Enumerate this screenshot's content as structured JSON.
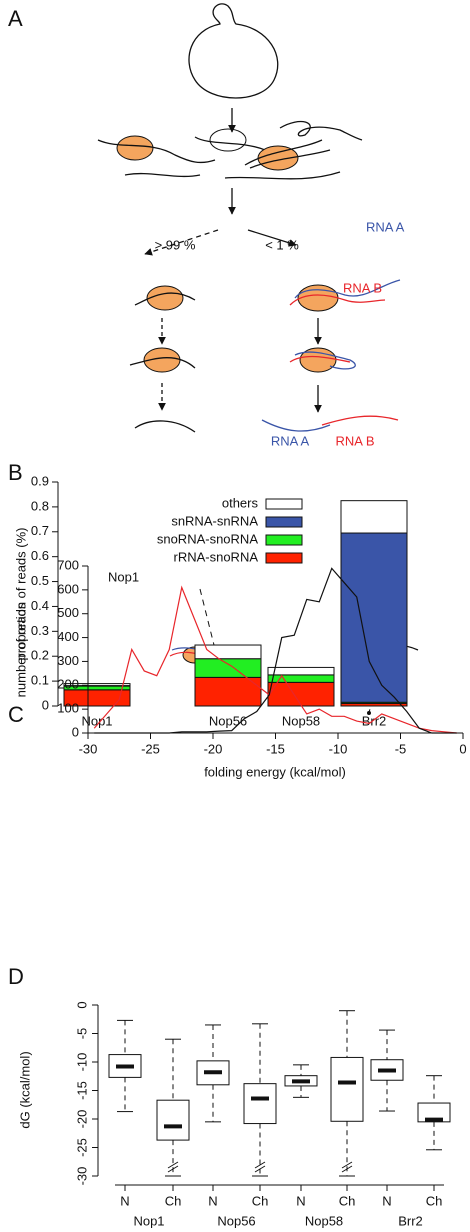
{
  "panels": [
    "A",
    "B",
    "C",
    "D"
  ],
  "diagram": {
    "left_fraction": "> 99 %",
    "right_fraction": "< 1 %",
    "rna_a": "RNA A",
    "rna_b": "RNA B",
    "product_a": "RNA A",
    "product_b": "RNA B"
  },
  "chart_data": [
    {
      "type": "bar",
      "stacked": true,
      "ylabel": "proportion of reads (%)",
      "categories": [
        "Nop1",
        "Nop56",
        "Nop58",
        "Brr2"
      ],
      "series": [
        {
          "name": "rRNA-snoRNA",
          "color": "#ff2200",
          "values": [
            0.065,
            0.115,
            0.095,
            0.01
          ]
        },
        {
          "name": "snoRNA-snoRNA",
          "color": "#22ee22",
          "values": [
            0.015,
            0.075,
            0.03,
            0.005
          ]
        },
        {
          "name": "snRNA-snRNA",
          "color": "#3a55a8",
          "values": [
            0.002,
            0,
            0,
            0.68
          ]
        },
        {
          "name": "others",
          "color": "#ffffff",
          "values": [
            0.008,
            0.055,
            0.03,
            0.13
          ]
        }
      ],
      "ylim": [
        0,
        0.9
      ],
      "yticks": [
        0,
        0.1,
        0.2,
        0.3,
        0.4,
        0.5,
        0.6,
        0.7,
        0.8,
        0.9
      ],
      "legend": "upper left"
    },
    {
      "type": "line",
      "annotation": "Nop1",
      "xlabel": "folding energy (kcal/mol)",
      "ylabel": "number of reads",
      "x": [
        -29.5,
        -28.5,
        -27.5,
        -26.5,
        -25.5,
        -24.5,
        -23.5,
        -22.5,
        -21.5,
        -20.5,
        -19.5,
        -18.5,
        -17.5,
        -16.5,
        -15.5,
        -14.5,
        -13.5,
        -12.5,
        -11.5,
        -10.5,
        -9.5,
        -8.5,
        -7.5,
        -6.5,
        -5.5,
        -4.5,
        -3.5,
        -2.5,
        -1.5,
        -0.5
      ],
      "series": [
        {
          "color": "#e8262b",
          "values": [
            20,
            80,
            140,
            350,
            260,
            240,
            350,
            610,
            480,
            350,
            310,
            280,
            240,
            200,
            160,
            240,
            160,
            80,
            100,
            70,
            70,
            50,
            40,
            80,
            60,
            40,
            20,
            10,
            5,
            0
          ]
        },
        {
          "color": "#111111",
          "values": [
            0,
            0,
            0,
            0,
            0,
            0,
            0,
            5,
            5,
            5,
            8,
            10,
            60,
            90,
            160,
            400,
            410,
            560,
            550,
            690,
            630,
            570,
            300,
            200,
            150,
            90,
            20,
            0,
            0,
            0
          ]
        }
      ],
      "xlim": [
        -30,
        0
      ],
      "xticks": [
        -30,
        -25,
        -20,
        -15,
        -10,
        -5,
        0
      ],
      "ylim": [
        0,
        700
      ],
      "yticks": [
        0,
        100,
        200,
        300,
        400,
        500,
        600,
        700
      ]
    },
    {
      "type": "box",
      "ylabel": "dG (kcal/mol)",
      "categories": [
        "N",
        "Ch",
        "N",
        "Ch",
        "N",
        "Ch",
        "N",
        "Ch"
      ],
      "groups": [
        "Nop1",
        "Nop56",
        "Nop58",
        "Brr2"
      ],
      "high": [
        -2.7,
        -6,
        -3.5,
        -3.3,
        -10.5,
        -1,
        -4.4,
        -12.4
      ],
      "q3": [
        -8.7,
        -16.7,
        -9.8,
        -13.8,
        -12.4,
        -9.2,
        -9.6,
        -17.2
      ],
      "median": [
        -10.8,
        -21.3,
        -11.8,
        -16.4,
        -13.4,
        -13.6,
        -11.5,
        -20.1
      ],
      "q1": [
        -12.7,
        -23.7,
        -14,
        -20.8,
        -14.2,
        -20.4,
        -13.2,
        -20.5
      ],
      "low": [
        -18.7,
        -30,
        -20.5,
        -30,
        -16.2,
        -30,
        -18.6,
        -25.4
      ],
      "ylim": [
        -30,
        0
      ],
      "yticks": [
        0,
        -5,
        -10,
        -15,
        -20,
        -25,
        -30
      ]
    }
  ]
}
